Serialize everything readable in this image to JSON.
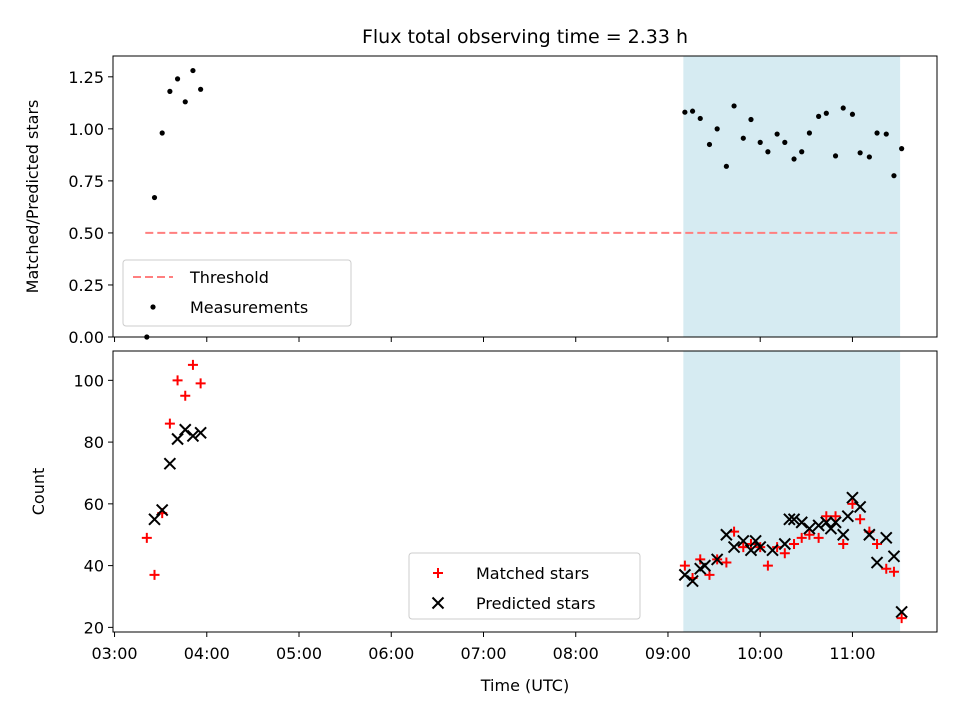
{
  "chart_data": [
    {
      "type": "scatter",
      "title": "Flux total observing time = 2.33 h",
      "xlabel": "",
      "ylabel": "Matched/Predicted stars",
      "xlim": [
        "02:59",
        "11:55"
      ],
      "ylim": [
        0,
        1.35
      ],
      "yticks": [
        0.0,
        0.25,
        0.5,
        0.75,
        1.0,
        1.25
      ],
      "ytick_labels": [
        "0.00",
        "0.25",
        "0.50",
        "0.75",
        "1.00",
        "1.25"
      ],
      "shaded_region": {
        "start": "09:10",
        "end": "11:31",
        "color": "#add8e6"
      },
      "legend": {
        "placement": "lower-left",
        "entries": [
          "Threshold",
          "Measurements"
        ]
      },
      "series": [
        {
          "name": "Threshold",
          "kind": "dashed-line",
          "color": "#ff7f7f",
          "x": [
            "03:20",
            "11:31"
          ],
          "y": [
            0.5,
            0.5
          ]
        },
        {
          "name": "Measurements",
          "kind": "points",
          "color": "#000000",
          "x": [
            "03:21",
            "03:26",
            "03:31",
            "03:36",
            "03:41",
            "03:46",
            "03:51",
            "03:56",
            "09:11",
            "09:16",
            "09:21",
            "09:27",
            "09:32",
            "09:38",
            "09:43",
            "09:49",
            "09:54",
            "10:00",
            "10:05",
            "10:11",
            "10:16",
            "10:22",
            "10:27",
            "10:32",
            "10:38",
            "10:43",
            "10:49",
            "10:54",
            "11:00",
            "11:05",
            "11:11",
            "11:16",
            "11:22",
            "11:27",
            "11:32"
          ],
          "y": [
            0.0,
            0.67,
            0.98,
            1.18,
            1.24,
            1.13,
            1.28,
            1.19,
            1.08,
            1.085,
            1.05,
            0.925,
            1.0,
            0.82,
            1.11,
            0.955,
            1.045,
            0.935,
            0.89,
            0.975,
            0.935,
            0.855,
            0.89,
            0.98,
            1.06,
            1.075,
            0.87,
            1.1,
            1.07,
            0.885,
            0.865,
            0.98,
            0.975,
            0.775,
            0.905
          ]
        }
      ]
    },
    {
      "type": "scatter",
      "title": "",
      "xlabel": "Time (UTC)",
      "ylabel": "Count",
      "xlim": [
        "02:59",
        "11:55"
      ],
      "ylim": [
        18.5,
        109.5
      ],
      "yticks": [
        20,
        40,
        60,
        80,
        100
      ],
      "ytick_labels": [
        "20",
        "40",
        "60",
        "80",
        "100"
      ],
      "xticks": [
        "03:00",
        "04:00",
        "05:00",
        "06:00",
        "07:00",
        "08:00",
        "09:00",
        "10:00",
        "11:00"
      ],
      "xtick_labels": [
        "03:00",
        "04:00",
        "05:00",
        "06:00",
        "07:00",
        "08:00",
        "09:00",
        "10:00",
        "11:00"
      ],
      "shaded_region": {
        "start": "09:10",
        "end": "11:31",
        "color": "#add8e6"
      },
      "legend": {
        "placement": "lower-center",
        "entries": [
          "Matched stars",
          "Predicted stars"
        ]
      },
      "series": [
        {
          "name": "Matched stars",
          "kind": "plus",
          "color": "#ff0000",
          "x": [
            "03:21",
            "03:26",
            "03:31",
            "03:36",
            "03:41",
            "03:46",
            "03:51",
            "03:56",
            "09:11",
            "09:16",
            "09:21",
            "09:27",
            "09:32",
            "09:38",
            "09:43",
            "09:49",
            "09:54",
            "10:00",
            "10:05",
            "10:11",
            "10:16",
            "10:22",
            "10:27",
            "10:32",
            "10:38",
            "10:43",
            "10:49",
            "10:54",
            "11:00",
            "11:05",
            "11:11",
            "11:16",
            "11:22",
            "11:27",
            "11:32"
          ],
          "y": [
            49,
            37,
            57,
            86,
            100,
            95,
            105,
            99,
            40,
            36,
            42,
            37,
            42,
            41,
            51,
            46,
            47,
            46,
            40,
            46,
            44,
            47,
            49,
            50,
            49,
            56,
            56,
            47,
            60,
            55,
            51,
            47,
            39,
            38,
            23
          ]
        },
        {
          "name": "Predicted stars",
          "kind": "x",
          "color": "#000000",
          "x": [
            "03:26",
            "03:31",
            "03:36",
            "03:41",
            "03:46",
            "03:51",
            "03:56",
            "09:11",
            "09:16",
            "09:21",
            "09:24",
            "09:32",
            "09:38",
            "09:43",
            "09:49",
            "09:54",
            "09:57",
            "10:00",
            "10:08",
            "10:16",
            "10:19",
            "10:22",
            "10:27",
            "10:32",
            "10:38",
            "10:43",
            "10:46",
            "10:49",
            "10:54",
            "10:57",
            "11:00",
            "11:05",
            "11:11",
            "11:16",
            "11:22",
            "11:27",
            "11:32"
          ],
          "y": [
            55,
            58,
            73,
            81,
            84,
            82,
            83,
            37,
            35,
            39,
            40,
            42,
            50,
            46,
            48,
            45,
            48,
            46,
            45,
            47,
            55,
            55,
            54,
            52,
            53,
            54,
            52,
            54,
            50,
            56,
            62,
            59,
            50,
            41,
            49,
            43,
            25
          ]
        }
      ]
    }
  ]
}
